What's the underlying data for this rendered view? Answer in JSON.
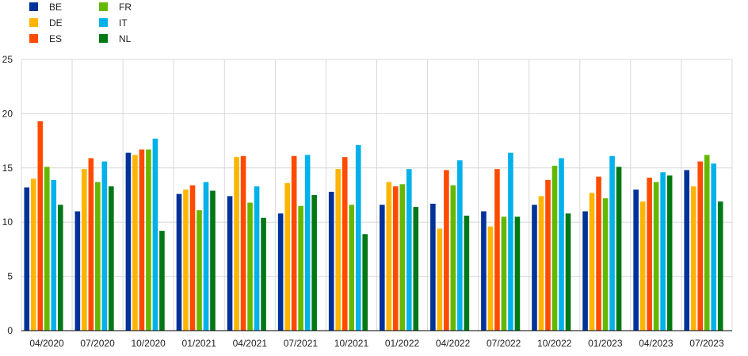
{
  "chart_data": {
    "type": "bar",
    "title": "",
    "xlabel": "",
    "ylabel": "",
    "ylim": [
      0,
      25
    ],
    "yticks": [
      0,
      5,
      10,
      15,
      20,
      25
    ],
    "grid": true,
    "legend_position": "top-left",
    "categories": [
      "04/2020",
      "07/2020",
      "10/2020",
      "01/2021",
      "04/2021",
      "07/2021",
      "10/2021",
      "01/2022",
      "04/2022",
      "07/2022",
      "10/2022",
      "01/2023",
      "04/2023",
      "07/2023"
    ],
    "series": [
      {
        "name": "BE",
        "color": "#003299",
        "values": [
          13.2,
          11.0,
          16.4,
          12.6,
          12.4,
          10.8,
          12.8,
          11.6,
          11.7,
          11.0,
          11.6,
          11.0,
          13.0,
          14.8
        ]
      },
      {
        "name": "DE",
        "color": "#FFB400",
        "values": [
          14.0,
          14.9,
          16.2,
          13.0,
          16.0,
          13.6,
          14.9,
          13.7,
          9.4,
          9.6,
          12.4,
          12.7,
          11.9,
          13.3
        ]
      },
      {
        "name": "ES",
        "color": "#FF4B00",
        "values": [
          19.3,
          15.9,
          16.7,
          13.4,
          16.1,
          16.1,
          16.0,
          13.3,
          14.8,
          14.9,
          13.9,
          14.2,
          14.1,
          15.6
        ]
      },
      {
        "name": "FR",
        "color": "#65B800",
        "values": [
          15.1,
          13.7,
          16.7,
          11.1,
          11.8,
          11.5,
          11.6,
          13.5,
          13.4,
          10.5,
          15.2,
          12.2,
          13.7,
          16.2
        ]
      },
      {
        "name": "IT",
        "color": "#00B1EA",
        "values": [
          13.9,
          15.6,
          17.7,
          13.7,
          13.3,
          16.2,
          17.1,
          14.9,
          15.7,
          16.4,
          15.9,
          16.1,
          14.6,
          15.4
        ]
      },
      {
        "name": "NL",
        "color": "#007816",
        "values": [
          11.6,
          13.3,
          9.2,
          12.9,
          10.4,
          12.5,
          8.9,
          11.4,
          10.6,
          10.5,
          10.8,
          15.1,
          14.3,
          11.9
        ]
      }
    ]
  }
}
